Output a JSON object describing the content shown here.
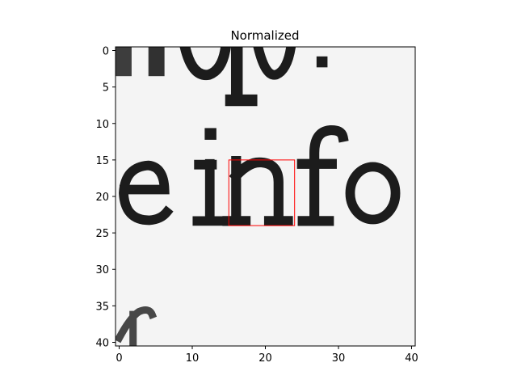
{
  "chart_data": {
    "type": "heatmap",
    "title": "Normalized",
    "xlabel": "",
    "ylabel": "",
    "xlim": [
      -0.5,
      40.5
    ],
    "ylim": [
      40.5,
      -0.5
    ],
    "xticks": [
      0,
      10,
      20,
      30,
      40
    ],
    "xtick_labels": [
      "0",
      "10",
      "20",
      "30",
      "40"
    ],
    "yticks": [
      0,
      5,
      10,
      15,
      20,
      25,
      30,
      35,
      40
    ],
    "ytick_labels": [
      "0",
      "5",
      "10",
      "15",
      "20",
      "25",
      "30",
      "35",
      "40"
    ],
    "grid": false,
    "colormap": "gray",
    "image_content": "grayscale scanned text patch showing the letters \"einfo\"",
    "annotations": [
      {
        "type": "rectangle",
        "x0": 15,
        "y0": 15,
        "x1": 24,
        "y1": 24,
        "color": "#ff0000"
      }
    ]
  },
  "colors": {
    "background": "#ffffff",
    "axis": "#000000",
    "box": "#ff0000",
    "paper": "#f4f4f4",
    "ink": "#1c1c1c"
  }
}
